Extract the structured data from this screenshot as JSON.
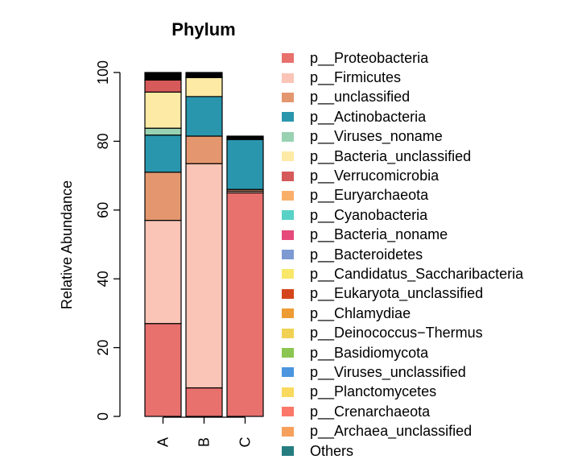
{
  "chart_data": {
    "type": "bar",
    "stacked": true,
    "title": "Phylum",
    "ylabel": "Relative Abundance",
    "xlabel": "",
    "ylim": [
      0,
      100
    ],
    "yticks": [
      "0",
      "20",
      "40",
      "60",
      "80",
      "100"
    ],
    "categories": [
      "A",
      "B",
      "C"
    ],
    "grid": false,
    "legend_position": "right",
    "series": [
      {
        "name": "p__Proteobacteria",
        "color": "#E8706D",
        "values": [
          27.0,
          8.3,
          65.0
        ]
      },
      {
        "name": "p__Firmicutes",
        "color": "#FAC4B6",
        "values": [
          30.0,
          65.2,
          0.5
        ]
      },
      {
        "name": "p__unclassified",
        "color": "#E4976F",
        "values": [
          14.0,
          8.0,
          0.5
        ]
      },
      {
        "name": "p__Actinobacteria",
        "color": "#2996AE",
        "values": [
          10.8,
          11.5,
          14.5
        ]
      },
      {
        "name": "p__Viruses_noname",
        "color": "#99D2B2",
        "values": [
          2.0,
          0.0,
          0.3
        ]
      },
      {
        "name": "p__Bacteria_unclassified",
        "color": "#FDEAA5",
        "values": [
          10.5,
          5.5,
          0.2
        ]
      },
      {
        "name": "p__Verrucomicrobia",
        "color": "#D55A59",
        "values": [
          3.5,
          0.2,
          0.0
        ]
      },
      {
        "name": "p__Euryarchaeota",
        "color": "#F9AF6A",
        "values": [
          0.0,
          0.0,
          0.0
        ]
      },
      {
        "name": "p__Cyanobacteria",
        "color": "#58D1C6",
        "values": [
          0.0,
          0.0,
          0.0
        ]
      },
      {
        "name": "p__Bacteria_noname",
        "color": "#E64A7A",
        "values": [
          0.0,
          0.0,
          0.0
        ]
      },
      {
        "name": "p__Bacteroidetes",
        "color": "#7C99D2",
        "values": [
          0.0,
          0.0,
          0.0
        ]
      },
      {
        "name": "p__Candidatus_Saccharibacteria",
        "color": "#F8E768",
        "values": [
          0.0,
          0.0,
          0.0
        ]
      },
      {
        "name": "p__Eukaryota_unclassified",
        "color": "#D4451C",
        "values": [
          0.0,
          0.0,
          0.0
        ]
      },
      {
        "name": "p__Chlamydiae",
        "color": "#EE9B34",
        "values": [
          0.0,
          0.0,
          0.0
        ]
      },
      {
        "name": "p__Deinococcus−Thermus",
        "color": "#F0D154",
        "values": [
          0.0,
          0.0,
          0.0
        ]
      },
      {
        "name": "p__Basidiomycota",
        "color": "#8AC651",
        "values": [
          0.0,
          0.0,
          0.0
        ]
      },
      {
        "name": "p__Viruses_unclassified",
        "color": "#4C95DF",
        "values": [
          0.0,
          0.0,
          0.0
        ]
      },
      {
        "name": "p__Planctomycetes",
        "color": "#FADA5E",
        "values": [
          0.0,
          0.0,
          0.0
        ]
      },
      {
        "name": "p__Crenarchaeota",
        "color": "#FA7769",
        "values": [
          0.0,
          0.0,
          0.0
        ]
      },
      {
        "name": "p__Archaea_unclassified",
        "color": "#F6A05C",
        "values": [
          0.0,
          0.0,
          0.0
        ]
      },
      {
        "name": "Others",
        "color": "#267D80",
        "values": [
          0.0,
          0.0,
          0.0
        ]
      },
      {
        "name": "",
        "color": "#000000",
        "values": [
          2.2,
          1.3,
          0.5
        ]
      }
    ]
  }
}
